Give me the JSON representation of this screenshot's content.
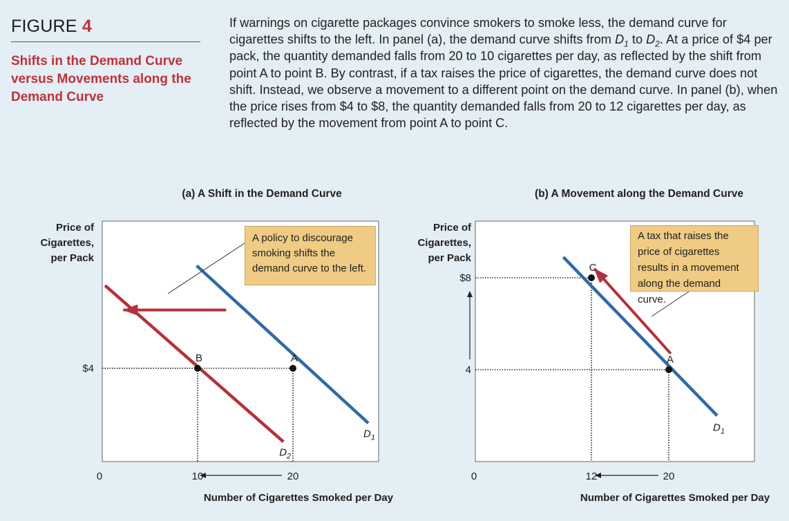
{
  "figure": {
    "label_word": "FIGURE",
    "label_number": "4",
    "subtitle": "Shifts in the Demand Curve versus Movements along the Demand Curve"
  },
  "caption": {
    "p1": "If warnings on cigarette packages convince smokers to smoke less, the demand curve for cigarettes shifts to the left. In panel (a), the demand curve shifts from ",
    "d1_base": "D",
    "d1_sub": "1",
    "p2": " to ",
    "d2_base": "D",
    "d2_sub": "2",
    "p3": ". At a price of $4 per pack, the quantity demanded falls from 20 to 10 cigarettes per day, as reflected by the shift from point A to point B. By contrast, if a tax raises the price of cigarettes, the demand curve does not shift. Instead, we observe a movement to a different point on the demand curve. In panel (b), when the price rises from $4 to $8, the quantity demanded falls from 20 to 12 cigarettes per day, as reflected by the movement from point A to point C."
  },
  "colors": {
    "red_curve": "#b5303a",
    "blue_curve": "#2e6aa9",
    "callout_fill": "#efcb83",
    "background": "#e4eef5"
  },
  "chart_data": [
    {
      "type": "line",
      "title": "(a) A Shift in the Demand Curve",
      "ylabel": "Price of Cigarettes, per Pack",
      "xlabel": "Number of Cigarettes Smoked per Day",
      "origin_label": "0",
      "x_ticks": [
        {
          "value": 10,
          "label": "10"
        },
        {
          "value": 20,
          "label": "20"
        }
      ],
      "y_ticks": [
        {
          "value": 4,
          "label": "$4"
        }
      ],
      "series": [
        {
          "name": "D1",
          "label_base": "D",
          "label_sub": "1",
          "color": "#2e6aa9",
          "x": [
            9.9,
            27.9
          ],
          "y": [
            8.4,
            1.65
          ]
        },
        {
          "name": "D2",
          "label_base": "D",
          "label_sub": "2",
          "color": "#b5303a",
          "x": [
            0.3,
            19.0
          ],
          "y": [
            7.55,
            0.85
          ]
        }
      ],
      "points": [
        {
          "label": "A",
          "x": 20,
          "y": 4
        },
        {
          "label": "B",
          "x": 10,
          "y": 4
        }
      ],
      "shift_arrow": {
        "from": [
          13.0,
          6.5
        ],
        "to": [
          2.2,
          6.5
        ]
      },
      "annotation": "A policy to discourage smoking shifts the demand curve to the left."
    },
    {
      "type": "line",
      "title": "(b) A Movement along the Demand Curve",
      "ylabel": "Price of Cigarettes, per Pack",
      "xlabel": "Number of Cigarettes Smoked per Day",
      "origin_label": "0",
      "x_ticks": [
        {
          "value": 12,
          "label": "12"
        },
        {
          "value": 20,
          "label": "20"
        }
      ],
      "y_ticks": [
        {
          "value": 4,
          "label": "4"
        },
        {
          "value": 8,
          "label": "$8"
        }
      ],
      "series": [
        {
          "name": "D1",
          "label_base": "D",
          "label_sub": "1",
          "color": "#2e6aa9",
          "x": [
            9.1,
            25.0
          ],
          "y": [
            8.9,
            2.0
          ]
        }
      ],
      "points": [
        {
          "label": "A",
          "x": 20,
          "y": 4
        },
        {
          "label": "C",
          "x": 12,
          "y": 8
        }
      ],
      "movement_arrow": {
        "from": [
          20.2,
          4.7
        ],
        "to": [
          12.3,
          8.4
        ]
      },
      "annotation": "A tax that raises the price of cigarettes results in a movement along the demand curve."
    }
  ]
}
